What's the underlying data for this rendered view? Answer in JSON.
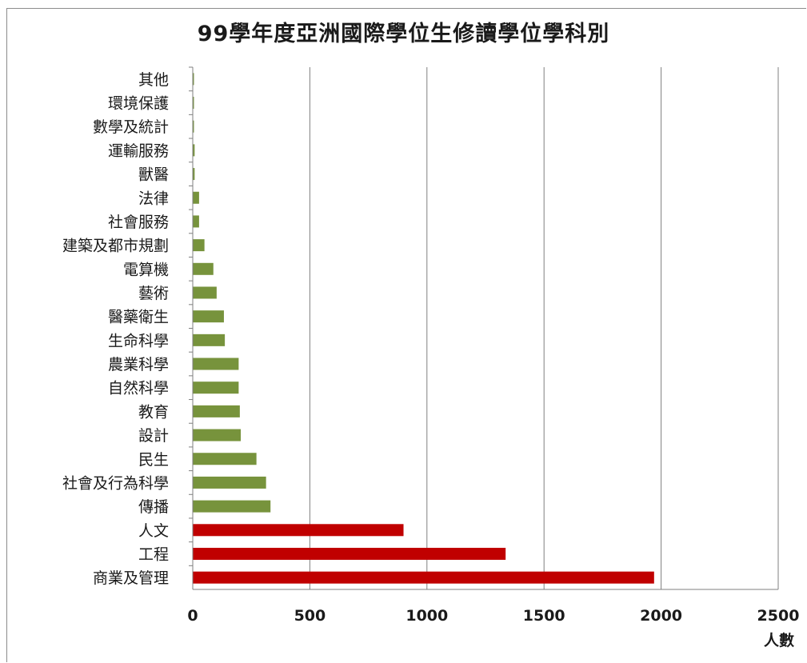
{
  "chart_data": {
    "type": "bar",
    "orientation": "horizontal",
    "title": "99學年度亞洲國際學位生修讀學位學科別",
    "xlabel": "人數",
    "ylabel": "",
    "xlim": [
      0,
      2500
    ],
    "xticks": [
      0,
      500,
      1000,
      1500,
      2000,
      2500
    ],
    "grid": "vertical",
    "legend": "none",
    "categories": [
      "其他",
      "環境保護",
      "數學及統計",
      "運輸服務",
      "獸醫",
      "法律",
      "社會服務",
      "建築及都市規劃",
      "電算機",
      "藝術",
      "醫藥衛生",
      "生命科學",
      "農業科學",
      "自然科學",
      "教育",
      "設計",
      "民生",
      "社會及行為科學",
      "傳播",
      "人文",
      "工程",
      "商業及管理"
    ],
    "values": [
      3,
      3,
      4,
      8,
      8,
      27,
      27,
      50,
      88,
      102,
      133,
      137,
      196,
      196,
      201,
      205,
      272,
      313,
      332,
      900,
      1336,
      1970
    ],
    "bar_colors": [
      "#77933c",
      "#77933c",
      "#77933c",
      "#77933c",
      "#77933c",
      "#77933c",
      "#77933c",
      "#77933c",
      "#77933c",
      "#77933c",
      "#77933c",
      "#77933c",
      "#77933c",
      "#77933c",
      "#77933c",
      "#77933c",
      "#77933c",
      "#77933c",
      "#77933c",
      "#c00000",
      "#c00000",
      "#c00000"
    ],
    "colors": {
      "highlight": "#c00000",
      "normal": "#77933c",
      "gridline": "#808080",
      "axis": "#7f7f7f"
    }
  }
}
